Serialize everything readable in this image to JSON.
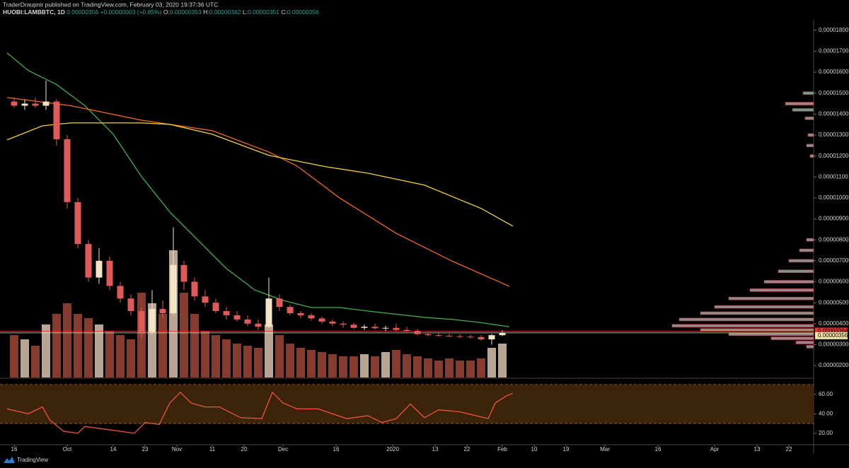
{
  "header": {
    "author": "TraderDraupnir published on TradingView.com, February 03, 2020 19:37:36 UTC",
    "symbol": "HUOBI:LAMBBTC, 1D",
    "last": "0.00000356",
    "change": "+0.00000003 (+0.85%)",
    "ohlc": [
      {
        "label": "O:",
        "value": "0.00000353"
      },
      {
        "label": "H:",
        "value": "0.00000362"
      },
      {
        "label": "L:",
        "value": "0.00000351"
      },
      {
        "label": "C:",
        "value": "0.00000356"
      }
    ]
  },
  "brand": "TradingView",
  "chart_data": {
    "type": "candlestick",
    "grid": false,
    "xlim": [
      -4,
      226
    ],
    "xticks": [
      {
        "value": 0,
        "label": "16"
      },
      {
        "value": 15,
        "label": "Oct"
      },
      {
        "value": 28,
        "label": "14"
      },
      {
        "value": 37,
        "label": "23"
      },
      {
        "value": 46,
        "label": "Nov"
      },
      {
        "value": 56,
        "label": "11"
      },
      {
        "value": 65,
        "label": "20"
      },
      {
        "value": 76,
        "label": "Dec"
      },
      {
        "value": 91,
        "label": "16"
      },
      {
        "value": 107,
        "label": "2020"
      },
      {
        "value": 119,
        "label": "13"
      },
      {
        "value": 128,
        "label": "22"
      },
      {
        "value": 138,
        "label": "Feb"
      },
      {
        "value": 147,
        "label": "10"
      },
      {
        "value": 156,
        "label": "19"
      },
      {
        "value": 167,
        "label": "Mar"
      },
      {
        "value": 182,
        "label": "16"
      },
      {
        "value": 198,
        "label": "Apr"
      },
      {
        "value": 210,
        "label": "13"
      },
      {
        "value": 219,
        "label": "22"
      }
    ],
    "ylim": [
      1.43e-06,
      1.85e-05
    ],
    "yticks": [
      {
        "value": 1.8e-05,
        "label": "0.00001800"
      },
      {
        "value": 1.7e-05,
        "label": "0.00001700"
      },
      {
        "value": 1.6e-05,
        "label": "0.00001600"
      },
      {
        "value": 1.5e-05,
        "label": "0.00001500"
      },
      {
        "value": 1.4e-05,
        "label": "0.00001400"
      },
      {
        "value": 1.3e-05,
        "label": "0.00001300"
      },
      {
        "value": 1.2e-05,
        "label": "0.00001200"
      },
      {
        "value": 1.1e-05,
        "label": "0.00001100"
      },
      {
        "value": 1e-05,
        "label": "0.00001000"
      },
      {
        "value": 9e-06,
        "label": "0.00000900"
      },
      {
        "value": 8e-06,
        "label": "0.00000800"
      },
      {
        "value": 7e-06,
        "label": "0.00000700"
      },
      {
        "value": 6e-06,
        "label": "0.00000600"
      },
      {
        "value": 5e-06,
        "label": "0.00000500"
      },
      {
        "value": 4e-06,
        "label": "0.00000400"
      },
      {
        "value": 3e-06,
        "label": "0.00000300"
      },
      {
        "value": 2e-06,
        "label": "0.00000200"
      }
    ],
    "up_color": "#f3e4c6",
    "down_color": "#e05a5a",
    "volume_up_color": "#d9c2ae",
    "volume_down_color": "#9c4536",
    "candles": {
      "x": [
        0,
        3,
        6,
        9,
        12,
        15,
        18,
        21,
        24,
        27,
        30,
        33,
        36,
        39,
        42,
        45,
        48,
        51,
        54,
        57,
        60,
        63,
        66,
        69,
        72,
        75,
        78,
        81,
        84,
        87,
        90,
        93,
        96,
        99,
        102,
        105,
        108,
        111,
        114,
        117,
        120,
        123,
        126,
        129,
        132,
        135,
        138
      ],
      "open": [
        1.46e-05,
        1.44e-05,
        1.45e-05,
        1.44e-05,
        1.46e-05,
        1.28e-05,
        9.8e-06,
        7.8e-06,
        6.2e-06,
        7e-06,
        5.8e-06,
        5.2e-06,
        4.6e-06,
        3.6e-06,
        4.7e-06,
        4.5e-06,
        6.8e-06,
        6e-06,
        5.3e-06,
        5e-06,
        4.6e-06,
        4.4e-06,
        4.2e-06,
        4e-06,
        3.85e-06,
        5.2e-06,
        4.8e-06,
        4.5e-06,
        4.4e-06,
        4.25e-06,
        4.1e-06,
        4e-06,
        3.95e-06,
        3.8e-06,
        3.85e-06,
        3.78e-06,
        3.8e-06,
        3.7e-06,
        3.65e-06,
        3.5e-06,
        3.45e-06,
        3.42e-06,
        3.4e-06,
        3.38e-06,
        3.36e-06,
        3.25e-06,
        3.45e-06
      ],
      "high": [
        1.48e-05,
        1.47e-05,
        1.48e-05,
        1.56e-05,
        1.47e-05,
        1.3e-05,
        1e-05,
        8e-06,
        7.6e-06,
        7.2e-06,
        6e-06,
        5.4e-06,
        4.8e-06,
        5.6e-06,
        5.1e-06,
        8.6e-06,
        7e-06,
        6.2e-06,
        5.6e-06,
        5.2e-06,
        4.8e-06,
        4.6e-06,
        4.4e-06,
        4.2e-06,
        6.2e-06,
        5.4e-06,
        4.9e-06,
        4.6e-06,
        4.5e-06,
        4.35e-06,
        4.2e-06,
        4.1e-06,
        4.05e-06,
        3.95e-06,
        4e-06,
        3.9e-06,
        4e-06,
        3.85e-06,
        3.75e-06,
        3.6e-06,
        3.55e-06,
        3.52e-06,
        3.5e-06,
        3.48e-06,
        3.45e-06,
        3.5e-06,
        3.68e-06
      ],
      "low": [
        1.43e-05,
        1.42e-05,
        1.43e-05,
        1.42e-05,
        1.25e-05,
        9.5e-06,
        7.6e-06,
        6e-06,
        5.9e-06,
        5.6e-06,
        5e-06,
        4.4e-06,
        3.3e-06,
        3.5e-06,
        4.3e-06,
        4.4e-06,
        5.6e-06,
        5.1e-06,
        4.8e-06,
        4.5e-06,
        4.2e-06,
        4.1e-06,
        3.9e-06,
        3.7e-06,
        3.8e-06,
        4.6e-06,
        4.4e-06,
        4.25e-06,
        4.15e-06,
        4e-06,
        3.9e-06,
        3.8e-06,
        3.75e-06,
        3.7e-06,
        3.72e-06,
        3.65e-06,
        3.62e-06,
        3.6e-06,
        3.45e-06,
        3.4e-06,
        3.38e-06,
        3.36e-06,
        3.32e-06,
        3.3e-06,
        3.2e-06,
        3e-06,
        3.4e-06
      ],
      "close": [
        1.44e-05,
        1.45e-05,
        1.44e-05,
        1.46e-05,
        1.28e-05,
        9.8e-06,
        7.8e-06,
        6.2e-06,
        7e-06,
        5.8e-06,
        5.2e-06,
        4.6e-06,
        3.6e-06,
        4.7e-06,
        4.5e-06,
        6.8e-06,
        6e-06,
        5.3e-06,
        5e-06,
        4.6e-06,
        4.4e-06,
        4.2e-06,
        4e-06,
        3.85e-06,
        5.2e-06,
        4.8e-06,
        4.5e-06,
        4.4e-06,
        4.25e-06,
        4.1e-06,
        4e-06,
        3.95e-06,
        3.8e-06,
        3.85e-06,
        3.78e-06,
        3.8e-06,
        3.7e-06,
        3.65e-06,
        3.5e-06,
        3.45e-06,
        3.42e-06,
        3.4e-06,
        3.38e-06,
        3.36e-06,
        3.25e-06,
        3.45e-06,
        3.56e-06
      ],
      "volume": [
        20,
        18,
        15,
        25,
        30,
        35,
        30,
        28,
        25,
        22,
        20,
        18,
        40,
        35,
        30,
        60,
        40,
        30,
        22,
        20,
        18,
        16,
        15,
        14,
        25,
        20,
        16,
        14,
        13,
        12,
        11,
        10,
        10,
        11,
        10,
        12,
        13,
        11,
        10,
        9,
        8,
        9,
        8,
        8,
        9,
        14,
        16
      ]
    },
    "series": [
      {
        "color": "#3fb04a",
        "x": [
          -2,
          4,
          12,
          20,
          28,
          36,
          44,
          52,
          60,
          68,
          76,
          84,
          92,
          100,
          108,
          116,
          124,
          132,
          140
        ],
        "values": [
          1.692e-05,
          1.608e-05,
          1.541e-05,
          1.44e-05,
          1.304e-05,
          1.102e-05,
          9.33e-06,
          7.98e-06,
          6.63e-06,
          5.61e-06,
          5.11e-06,
          4.77e-06,
          4.77e-06,
          4.6e-06,
          4.45e-06,
          4.3e-06,
          4.2e-06,
          4.05e-06,
          3.85e-06
        ]
      },
      {
        "color": "#f26a1b",
        "x": [
          -2,
          16,
          36,
          56,
          72,
          80,
          92,
          108,
          124,
          140
        ],
        "values": [
          1.479e-05,
          1.44e-05,
          1.371e-05,
          1.321e-05,
          1.219e-05,
          1.152e-05,
          1e-05,
          8.31e-06,
          6.97e-06,
          5.78e-06
        ]
      },
      {
        "color": "#f2d13a",
        "x": [
          -2,
          8,
          16,
          36,
          44,
          56,
          72,
          88,
          100,
          116,
          132,
          141
        ],
        "values": [
          1.277e-05,
          1.344e-05,
          1.358e-05,
          1.358e-05,
          1.351e-05,
          1.304e-05,
          1.203e-05,
          1.149e-05,
          1.118e-05,
          1.061e-05,
          9.5e-06,
          8.65e-06
        ]
      }
    ],
    "price_lines": [
      {
        "value": 3.64e-06,
        "label": "0.00000364",
        "color": "#e53935"
      },
      {
        "value": 3.56e-06,
        "label": "0.00000356",
        "color": "#f6e7a8"
      }
    ],
    "volume_profile": {
      "color": "#8d8d8d",
      "edge_color": "#b23a3a",
      "prices": [
        1.5e-05,
        1.45e-05,
        1.42e-05,
        1.38e-05,
        1.3e-05,
        1.25e-05,
        1.2e-05,
        8e-06,
        7.5e-06,
        7e-06,
        6.5e-06,
        6e-06,
        5.6e-06,
        5.2e-06,
        4.8e-06,
        4.5e-06,
        4.2e-06,
        3.9e-06,
        3.7e-06,
        3.5e-06,
        3.3e-06,
        3.1e-06,
        2.9e-06
      ],
      "values": [
        15,
        40,
        30,
        12,
        8,
        10,
        5,
        10,
        20,
        35,
        50,
        70,
        90,
        120,
        140,
        160,
        190,
        200,
        160,
        120,
        60,
        25,
        10
      ]
    },
    "rsi": {
      "color": "#f0533a",
      "band_color": "#3b2409",
      "band_edge": "#b5651d",
      "ylim": [
        9,
        75
      ],
      "band": [
        30,
        70
      ],
      "yticks": [
        {
          "value": 60,
          "label": "60.00"
        },
        {
          "value": 40,
          "label": "40.00"
        },
        {
          "value": 20,
          "label": "20.00"
        }
      ],
      "x": [
        -2,
        4,
        8,
        10,
        14,
        18,
        20,
        24,
        28,
        34,
        37,
        41,
        44,
        47,
        50,
        54,
        58,
        64,
        70,
        73,
        76,
        80,
        86,
        94,
        100,
        104,
        108,
        112,
        116,
        120,
        126,
        134,
        136,
        139,
        141
      ],
      "values": [
        45,
        40,
        47,
        34,
        22,
        20,
        27,
        25,
        23,
        20,
        31,
        29,
        51,
        62,
        51,
        47,
        47,
        36,
        35,
        62,
        51,
        45,
        45,
        35,
        38,
        31,
        35,
        50,
        36,
        44,
        42,
        35,
        51,
        58,
        61
      ]
    }
  }
}
